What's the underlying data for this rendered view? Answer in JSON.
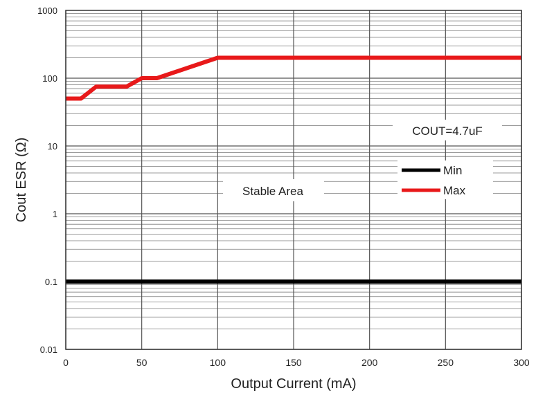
{
  "chart_data": {
    "type": "line",
    "xlabel": "Output Current (mA)",
    "ylabel": "Cout ESR (Ω)",
    "x_scale": "linear",
    "y_scale": "log",
    "xlim": [
      0,
      300
    ],
    "ylim": [
      0.01,
      1000
    ],
    "x_ticks": [
      "0",
      "50",
      "100",
      "150",
      "200",
      "250",
      "300"
    ],
    "y_ticks": [
      "0.01",
      "0.1",
      "1",
      "10",
      "100",
      "1000"
    ],
    "grid": true,
    "legend_position": "right-center",
    "annotations": [
      {
        "text": "COUT=4.7uF"
      },
      {
        "text": "Stable Area"
      }
    ],
    "series": [
      {
        "name": "Min",
        "color": "#000000",
        "points": [
          [
            0,
            0.1
          ],
          [
            300,
            0.1
          ]
        ]
      },
      {
        "name": "Max",
        "color": "#e8191a",
        "points": [
          [
            0,
            50
          ],
          [
            10,
            50
          ],
          [
            20,
            75
          ],
          [
            40,
            75
          ],
          [
            50,
            100
          ],
          [
            60,
            100
          ],
          [
            100,
            200
          ],
          [
            300,
            200
          ]
        ]
      }
    ]
  }
}
